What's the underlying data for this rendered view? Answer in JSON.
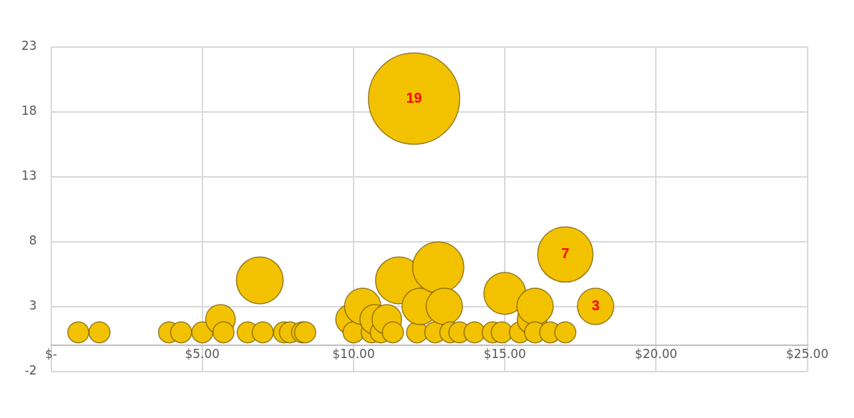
{
  "chart_data": {
    "type": "bubble",
    "x": [
      0.9,
      1.6,
      3.9,
      4.3,
      5.0,
      5.6,
      5.7,
      6.5,
      6.9,
      7.0,
      7.7,
      7.9,
      8.3,
      8.4,
      9.9,
      10.0,
      10.3,
      10.6,
      10.7,
      10.9,
      11.1,
      11.3,
      11.5,
      12.0,
      12.1,
      12.2,
      12.7,
      12.8,
      13.0,
      13.2,
      13.5,
      14.0,
      14.6,
      14.9,
      15.0,
      15.5,
      15.9,
      16.0,
      16.0,
      16.5,
      17.0,
      17.0,
      18.0
    ],
    "values": [
      1,
      1,
      1,
      1,
      1,
      2,
      1,
      1,
      5,
      1,
      1,
      1,
      1,
      1,
      2,
      1,
      3,
      1,
      2,
      1,
      2,
      1,
      5,
      19,
      1,
      3,
      1,
      6,
      3,
      1,
      1,
      1,
      1,
      1,
      4,
      1,
      2,
      3,
      1,
      1,
      1,
      7,
      3
    ],
    "sizes": [
      0.053,
      0.053,
      0.053,
      0.053,
      0.053,
      0.105,
      0.053,
      0.053,
      0.263,
      0.053,
      0.053,
      0.053,
      0.053,
      0.053,
      0.105,
      0.053,
      0.158,
      0.053,
      0.105,
      0.053,
      0.105,
      0.053,
      0.263,
      1,
      0.053,
      0.158,
      0.053,
      0.316,
      0.158,
      0.053,
      0.053,
      0.053,
      0.053,
      0.053,
      0.211,
      0.053,
      0.105,
      0.158,
      0.053,
      0.053,
      0.053,
      0.368,
      0.158
    ],
    "value_labels": [
      null,
      null,
      null,
      null,
      null,
      null,
      null,
      null,
      null,
      null,
      null,
      null,
      null,
      null,
      null,
      null,
      null,
      null,
      null,
      null,
      null,
      null,
      null,
      "19",
      null,
      null,
      null,
      null,
      null,
      null,
      null,
      null,
      null,
      null,
      null,
      null,
      null,
      null,
      null,
      null,
      null,
      "7",
      "3"
    ],
    "color": "#f2c200",
    "xlim": [
      0,
      25
    ],
    "xticks": [
      {
        "value": 0,
        "label": "$-"
      },
      {
        "value": 5,
        "label": "$5.00"
      },
      {
        "value": 10,
        "label": "$10.00"
      },
      {
        "value": 15,
        "label": "$15.00"
      },
      {
        "value": 20,
        "label": "$20.00"
      },
      {
        "value": 25,
        "label": "$25.00"
      }
    ],
    "ylim": [
      -2,
      23
    ],
    "yticks": [
      -2,
      3,
      8,
      13,
      18,
      23
    ],
    "grid": true
  }
}
